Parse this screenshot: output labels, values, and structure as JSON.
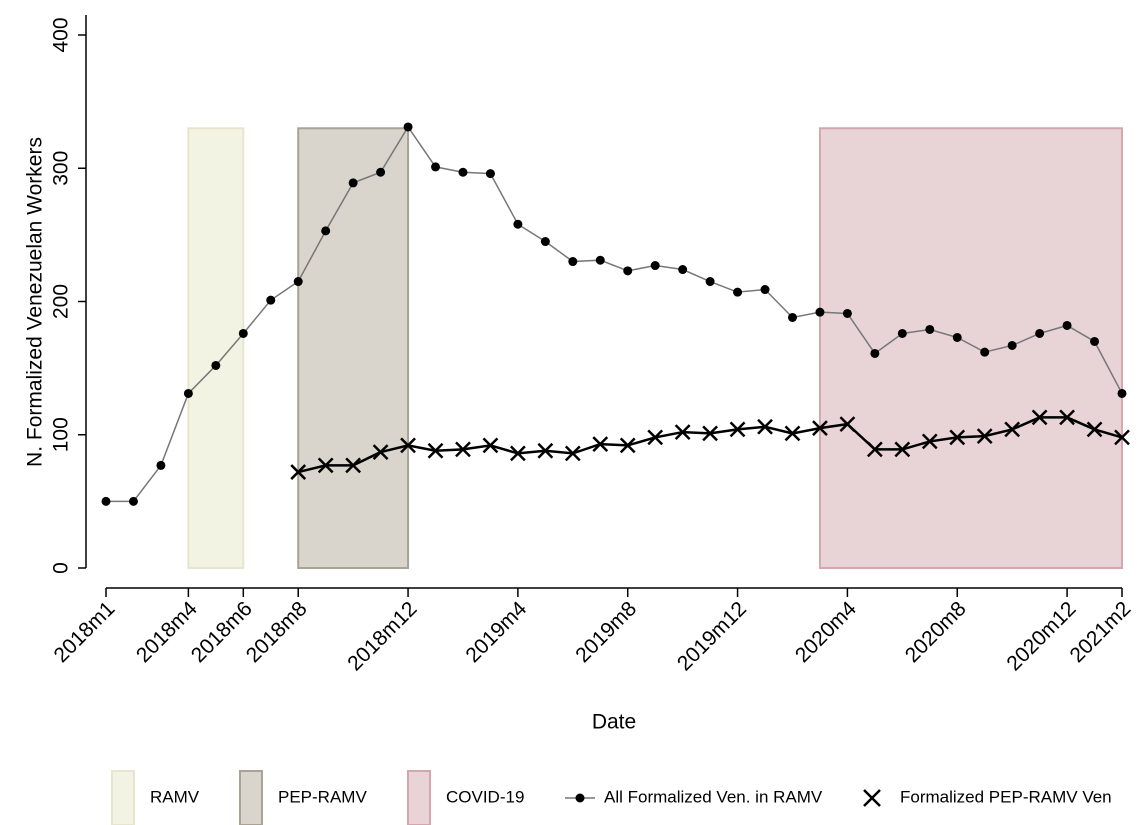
{
  "chart_data": {
    "type": "line",
    "xlabel": "Date",
    "ylabel": "N. Formalized Venezuelan Workers",
    "categories": [
      "2018m1",
      null,
      null,
      "2018m4",
      null,
      "2018m6",
      null,
      "2018m8",
      null,
      null,
      null,
      "2018m12",
      null,
      null,
      null,
      "2019m4",
      null,
      null,
      null,
      "2019m8",
      null,
      null,
      null,
      "2019m12",
      null,
      null,
      null,
      "2020m4",
      null,
      null,
      null,
      "2020m8",
      null,
      null,
      null,
      "2020m12",
      null,
      "2021m2"
    ],
    "ylim": [
      0,
      400
    ],
    "yticks": [
      0,
      100,
      200,
      300,
      400
    ],
    "grid": false,
    "legend": "bottom",
    "bands": [
      {
        "name": "RAMV",
        "color": "#f3f3e4",
        "edge": "#e6e6cf",
        "values": [
          null,
          null,
          null,
          330,
          330,
          330,
          null,
          null,
          null,
          null,
          null,
          null,
          null,
          null,
          null,
          null,
          null,
          null,
          null,
          null,
          null,
          null,
          null,
          null,
          null,
          null,
          null,
          null,
          null,
          null,
          null,
          null,
          null,
          null,
          null,
          null,
          null,
          null
        ]
      },
      {
        "name": "PEP-RAMV",
        "color": "#d9d5cc",
        "edge": "#aaa294",
        "values": [
          null,
          null,
          null,
          null,
          null,
          null,
          null,
          330,
          330,
          330,
          330,
          330,
          null,
          null,
          null,
          null,
          null,
          null,
          null,
          null,
          null,
          null,
          null,
          null,
          null,
          null,
          null,
          null,
          null,
          null,
          null,
          null,
          null,
          null,
          null,
          null,
          null,
          null
        ]
      },
      {
        "name": "COVID-19",
        "color": "#e8d4d7",
        "edge": "#d4a7af",
        "values": [
          null,
          null,
          null,
          null,
          null,
          null,
          null,
          null,
          null,
          null,
          null,
          null,
          null,
          null,
          null,
          null,
          null,
          null,
          null,
          null,
          null,
          null,
          null,
          null,
          null,
          null,
          330,
          330,
          330,
          330,
          330,
          330,
          330,
          330,
          330,
          330,
          330,
          330
        ]
      }
    ],
    "series": [
      {
        "name": "All Formalized Ven. in RAMV",
        "color": "#777777",
        "marker": "dot",
        "values": [
          50,
          50,
          77,
          131,
          152,
          176,
          201,
          215,
          253,
          289,
          297,
          331,
          301,
          297,
          296,
          258,
          245,
          230,
          231,
          223,
          227,
          224,
          215,
          207,
          209,
          188,
          192,
          191,
          161,
          176,
          179,
          173,
          162,
          167,
          176,
          182,
          170,
          131
        ]
      },
      {
        "name": "Formalized PEP-RAMV Ven",
        "color": "#000000",
        "marker": "cross",
        "values": [
          null,
          null,
          null,
          null,
          null,
          null,
          null,
          72,
          77,
          77,
          87,
          92,
          88,
          89,
          92,
          86,
          88,
          86,
          93,
          92,
          98,
          102,
          101,
          104,
          106,
          101,
          105,
          108,
          89,
          89,
          95,
          98,
          99,
          104,
          113,
          113,
          104,
          98
        ]
      }
    ]
  }
}
